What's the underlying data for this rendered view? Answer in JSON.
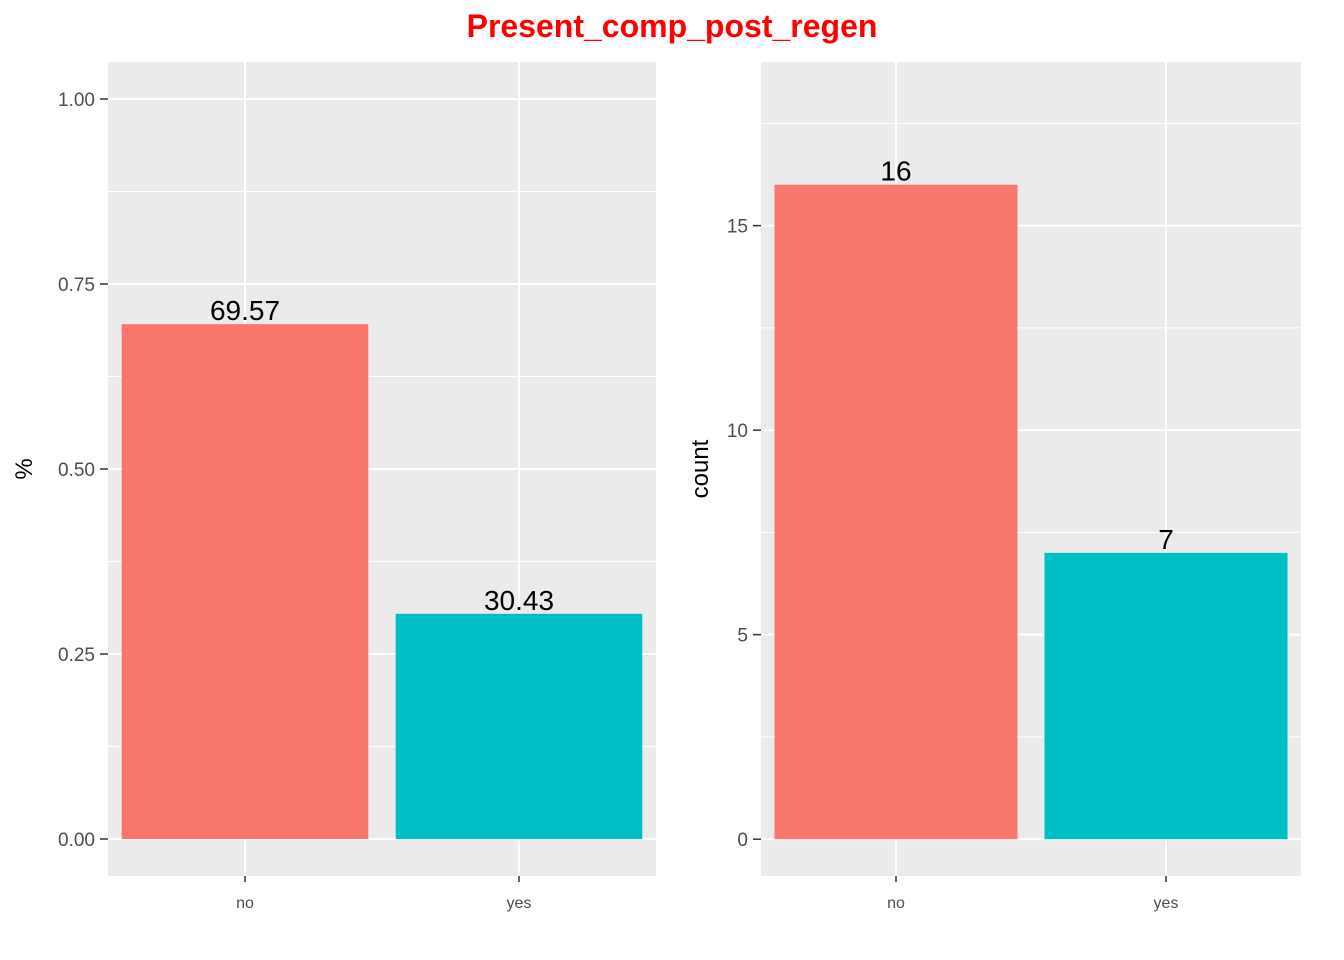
{
  "title": "Present_comp_post_regen",
  "title_color": "#ff0000",
  "colors": {
    "panel_bg": "#ebebeb",
    "grid": "#ffffff",
    "tick_text": "#4d4d4d",
    "bar_no": "#f8766d",
    "bar_yes": "#00bfc4"
  },
  "chart_data": [
    {
      "type": "bar",
      "categories": [
        "no",
        "yes"
      ],
      "values": [
        0.6957,
        0.3043
      ],
      "data_labels": [
        "69.57",
        "30.43"
      ],
      "xlabel": "",
      "ylabel": "%",
      "ylim": [
        -0.05,
        1.05
      ],
      "yticks": [
        0.0,
        0.25,
        0.5,
        0.75,
        1.0
      ],
      "ytick_labels": [
        "0.00",
        "0.25",
        "0.50",
        "0.75",
        "1.00"
      ],
      "grid": true,
      "legend": "none"
    },
    {
      "type": "bar",
      "categories": [
        "no",
        "yes"
      ],
      "values": [
        16,
        7
      ],
      "data_labels": [
        "16",
        "7"
      ],
      "xlabel": "",
      "ylabel": "count",
      "ylim": [
        -0.9,
        19
      ],
      "yticks": [
        0,
        5,
        10,
        15
      ],
      "ytick_labels": [
        "0",
        "5",
        "10",
        "15"
      ],
      "grid": true,
      "legend": "none"
    }
  ]
}
